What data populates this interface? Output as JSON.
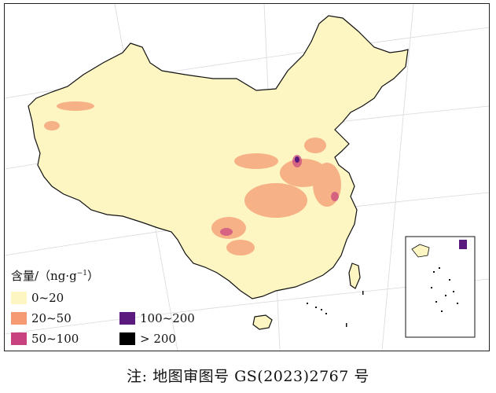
{
  "legend": {
    "title_main": "含量/（ng·g",
    "title_sup": "−1",
    "title_tail": "）",
    "items": [
      {
        "label": "0~20",
        "color": "#fdf6c3"
      },
      {
        "label": "20~50",
        "color": "#f59a72"
      },
      {
        "label": "50~100",
        "color": "#c8427f"
      },
      {
        "label": "100~200",
        "color": "#5b1a7d"
      },
      {
        "label": "> 200",
        "color": "#000000"
      }
    ]
  },
  "caption": "注: 地图审图号 GS(2023)2767 号",
  "colors": {
    "land": "#fdf6c3",
    "border": "#111111",
    "graticule": "#d8d8d8"
  }
}
